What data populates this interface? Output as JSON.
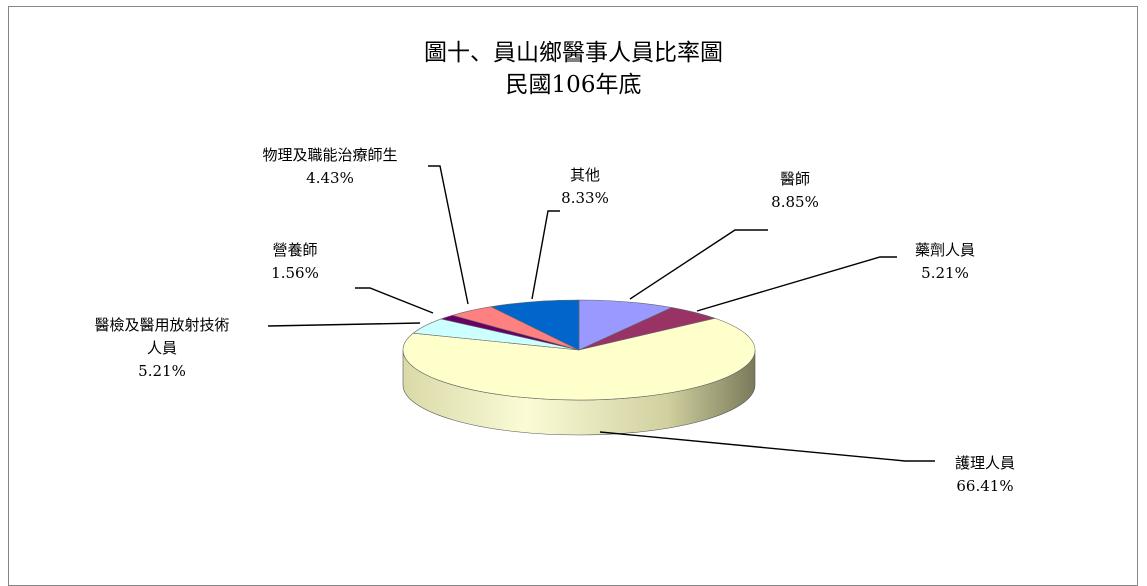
{
  "chart_data": {
    "type": "pie",
    "title": "圖十、員山鄉醫事人員比率圖",
    "subtitle": "民國106年底",
    "slices": [
      {
        "label": "醫師",
        "value": 8.85,
        "display": "8.85%",
        "color": "#9999ff",
        "label_lines": [
          "醫師"
        ]
      },
      {
        "label": "藥劑人員",
        "value": 5.21,
        "display": "5.21%",
        "color": "#993366",
        "label_lines": [
          "藥劑人員"
        ]
      },
      {
        "label": "護理人員",
        "value": 66.41,
        "display": "66.41%",
        "color": "#ffffcc",
        "label_lines": [
          "護理人員"
        ]
      },
      {
        "label": "醫檢及醫用放射技術人員",
        "value": 5.21,
        "display": "5.21%",
        "color": "#ccffff",
        "label_lines": [
          "醫檢及醫用放射技術",
          "人員"
        ]
      },
      {
        "label": "營養師",
        "value": 1.56,
        "display": "1.56%",
        "color": "#660066",
        "label_lines": [
          "營養師"
        ]
      },
      {
        "label": "物理及職能治療師生",
        "value": 4.43,
        "display": "4.43%",
        "color": "#ff8080",
        "label_lines": [
          "物理及職能治療師生"
        ]
      },
      {
        "label": "其他",
        "value": 8.33,
        "display": "8.33%",
        "color": "#0066cc",
        "label_lines": [
          "其他"
        ]
      }
    ]
  }
}
